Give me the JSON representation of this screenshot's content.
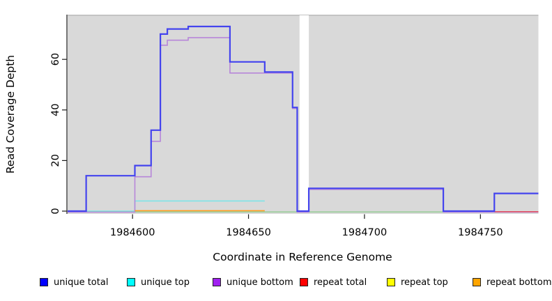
{
  "chart_data": {
    "type": "line",
    "title": "",
    "xlabel": "Coordinate in Reference Genome",
    "ylabel": "Read Coverage Depth",
    "x_ticks": [
      1984600,
      1984650,
      1984700,
      1984750
    ],
    "y_ticks": [
      0,
      20,
      40,
      60
    ],
    "xlim": [
      1984572,
      1984775
    ],
    "ylim": [
      0,
      78
    ],
    "grid": false,
    "plot_bg_color": "#d9d9d9",
    "gap_region": {
      "x_start": 1984672,
      "x_end": 1984676,
      "color": "#ffffff"
    },
    "baseline": {
      "name": "zero baseline",
      "color": "#8fcb8f",
      "steps": [
        [
          1984572,
          1984775,
          0
        ]
      ]
    },
    "series": [
      {
        "name": "unique total",
        "color": "#4444ee",
        "steps": [
          [
            1984572,
            1984580,
            0
          ],
          [
            1984580,
            1984601,
            14
          ],
          [
            1984601,
            1984608,
            18
          ],
          [
            1984608,
            1984612,
            32
          ],
          [
            1984612,
            1984615,
            70
          ],
          [
            1984615,
            1984624,
            72
          ],
          [
            1984624,
            1984642,
            73
          ],
          [
            1984642,
            1984657,
            59
          ],
          [
            1984657,
            1984669,
            55
          ],
          [
            1984669,
            1984671,
            41
          ],
          [
            1984671,
            1984676,
            0
          ],
          [
            1984676,
            1984734,
            9
          ],
          [
            1984734,
            1984756,
            0
          ],
          [
            1984756,
            1984775,
            7
          ]
        ]
      },
      {
        "name": "unique top",
        "color": "#7de4e8",
        "steps": [
          [
            1984572,
            1984601,
            0
          ],
          [
            1984601,
            1984657,
            4
          ]
        ]
      },
      {
        "name": "unique bottom",
        "color": "#b786d9",
        "steps": [
          [
            1984572,
            1984601,
            0
          ],
          [
            1984601,
            1984608,
            14
          ],
          [
            1984608,
            1984612,
            28
          ],
          [
            1984612,
            1984615,
            66
          ],
          [
            1984615,
            1984624,
            68
          ],
          [
            1984624,
            1984642,
            69
          ],
          [
            1984642,
            1984669,
            55
          ],
          [
            1984669,
            1984671,
            41
          ],
          [
            1984671,
            1984676,
            0
          ],
          [
            1984676,
            1984734,
            9
          ],
          [
            1984734,
            1984775,
            0
          ]
        ]
      },
      {
        "name": "repeat total",
        "color": "#e25565",
        "steps": [
          [
            1984756,
            1984775,
            0
          ]
        ]
      },
      {
        "name": "repeat top",
        "color": "#ffff00",
        "steps": []
      },
      {
        "name": "repeat bottom",
        "color": "#ff9d1e",
        "steps": [
          [
            1984601,
            1984657,
            0
          ]
        ]
      }
    ]
  },
  "legend": {
    "items": [
      {
        "label": "unique total",
        "color": "#0000ff"
      },
      {
        "label": "unique top",
        "color": "#00ffff"
      },
      {
        "label": "unique bottom",
        "color": "#a020f0"
      },
      {
        "label": "repeat total",
        "color": "#ff0000"
      },
      {
        "label": "repeat top",
        "color": "#ffff00"
      },
      {
        "label": "repeat bottom",
        "color": "#ffa500"
      }
    ]
  }
}
